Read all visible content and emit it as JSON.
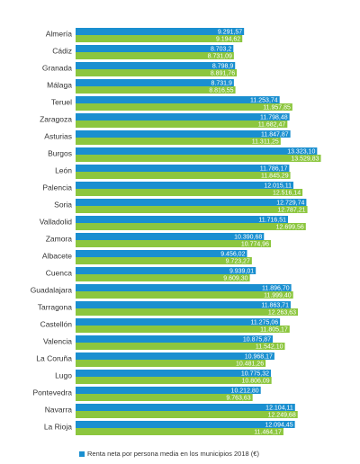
{
  "chart_data": {
    "type": "bar",
    "orientation": "horizontal",
    "categories": [
      "Almería",
      "Cádiz",
      "Granada",
      "Málaga",
      "Teruel",
      "Zaragoza",
      "Asturias",
      "Burgos",
      "León",
      "Palencia",
      "Soria",
      "Valladolid",
      "Zamora",
      "Albacete",
      "Cuenca",
      "Guadalajara",
      "Tarragona",
      "Castellón",
      "Valencia",
      "La Coruña",
      "Lugo",
      "Pontevedra",
      "Navarra",
      "La Rioja"
    ],
    "series": [
      {
        "name": "Renta neta por persona media en los municipios 2018 (€)",
        "color": "#1a8fd0",
        "values": [
          9291.57,
          8703.2,
          8798.9,
          8731.9,
          11253.74,
          11798.48,
          11847.87,
          13323.1,
          11786.17,
          12015.11,
          12729.74,
          11716.51,
          10390.68,
          9456.02,
          9939.01,
          11896.7,
          11863.71,
          11275.06,
          10875.87,
          10968.17,
          10775.32,
          10212.8,
          12104.11,
          12094.45
        ],
        "labels": [
          "9.291,57",
          "8.703,2",
          "8.798,9",
          "8.731,9",
          "11.253,74",
          "11.798,48",
          "11.847,87",
          "13.323,10",
          "11.786,17",
          "12.015,11",
          "12.729,74",
          "11.716,51",
          "10.390,68",
          "9.456,02",
          "9.939,01",
          "11.896,70",
          "11.863,71",
          "11.275,06",
          "10.875,87",
          "10.968,17",
          "10.775,32",
          "10.212,80",
          "12.104,11",
          "12.094,45"
        ]
      },
      {
        "name": "",
        "color": "#8cc63e",
        "values": [
          9194.62,
          8731.09,
          8891.76,
          8816.55,
          11957.85,
          11682.47,
          11311.25,
          13529.83,
          11845.29,
          12516.14,
          12787.21,
          12699.56,
          10774.96,
          9723.27,
          9609.3,
          11999.4,
          12263.63,
          11805.17,
          11542.1,
          10481.26,
          10806.09,
          9763.63,
          12249.68,
          11464.17
        ],
        "labels": [
          "9.194,62",
          "8.731,09",
          "8.891,76",
          "8.816,55",
          "11.957,85",
          "11.682,47",
          "11.311,25",
          "13.529,83",
          "11.845,29",
          "12.516,14",
          "12.787,21",
          "12.699,56",
          "10.774,96",
          "9.723,27",
          "9.609,30",
          "11.999,40",
          "12.263,63",
          "11.805,17",
          "11.542,10",
          "10.481,26",
          "10.806,09",
          "9.763,63",
          "12.249,68",
          "11.464,17"
        ]
      }
    ],
    "xlim": [
      0,
      14000
    ]
  }
}
